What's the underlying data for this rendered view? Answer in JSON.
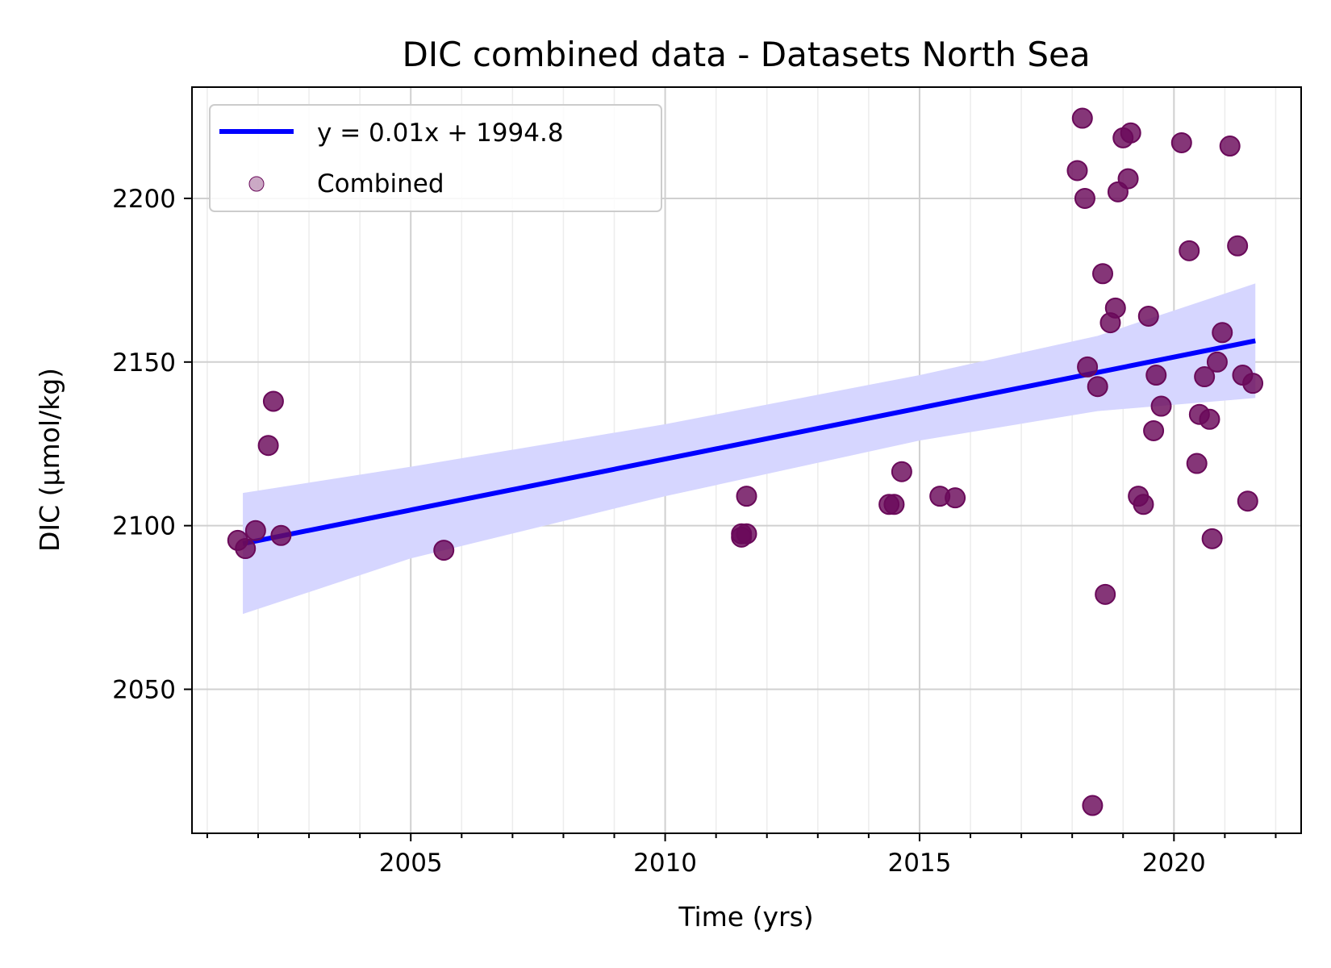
{
  "chart_data": {
    "type": "scatter",
    "title": "DIC combined data - Datasets North Sea",
    "xlabel": "Time (yrs)",
    "ylabel": "DIC (µmol/kg)",
    "xlim": [
      2000.7,
      2022.5
    ],
    "ylim": [
      2006,
      2234
    ],
    "x_ticks": [
      2005,
      2010,
      2015,
      2020
    ],
    "y_ticks": [
      2050,
      2100,
      2150,
      2200
    ],
    "grid": true,
    "legend_position": "top-left",
    "colors": {
      "points": "#6a0a5a",
      "fit_line": "#0000ff",
      "ci_band": "#d6d6ff"
    },
    "fit": {
      "label": "y = 0.01x + 1994.8",
      "start": [
        2001.7,
        2094.5
      ],
      "end": [
        2021.6,
        2156.5
      ]
    },
    "ci_band": {
      "x": [
        2001.7,
        2005,
        2010,
        2015,
        2018.5,
        2021.6
      ],
      "upper": [
        2110,
        2118,
        2131,
        2146,
        2158,
        2174
      ],
      "lower": [
        2073,
        2090,
        2109,
        2126,
        2135,
        2139
      ]
    },
    "series": [
      {
        "name": "Combined",
        "points": [
          [
            2001.6,
            2095.5
          ],
          [
            2001.75,
            2093
          ],
          [
            2001.95,
            2098.5
          ],
          [
            2002.2,
            2124.5
          ],
          [
            2002.3,
            2138
          ],
          [
            2002.45,
            2097
          ],
          [
            2005.65,
            2092.5
          ],
          [
            2011.5,
            2097.5
          ],
          [
            2011.5,
            2096.5
          ],
          [
            2011.6,
            2097.5
          ],
          [
            2011.6,
            2109
          ],
          [
            2014.4,
            2106.5
          ],
          [
            2014.5,
            2106.5
          ],
          [
            2014.65,
            2116.5
          ],
          [
            2015.4,
            2109
          ],
          [
            2015.7,
            2108.5
          ],
          [
            2018.1,
            2208.5
          ],
          [
            2018.2,
            2224.5
          ],
          [
            2018.25,
            2200
          ],
          [
            2018.3,
            2148.5
          ],
          [
            2018.4,
            2014.5
          ],
          [
            2018.5,
            2142.5
          ],
          [
            2018.6,
            2177
          ],
          [
            2018.65,
            2079
          ],
          [
            2018.75,
            2162
          ],
          [
            2018.85,
            2166.5
          ],
          [
            2018.9,
            2202
          ],
          [
            2019.0,
            2218.5
          ],
          [
            2019.1,
            2206
          ],
          [
            2019.15,
            2220
          ],
          [
            2019.3,
            2109
          ],
          [
            2019.4,
            2106.5
          ],
          [
            2019.5,
            2164
          ],
          [
            2019.6,
            2129
          ],
          [
            2019.65,
            2146
          ],
          [
            2019.75,
            2136.5
          ],
          [
            2020.15,
            2217
          ],
          [
            2020.3,
            2184
          ],
          [
            2020.45,
            2119
          ],
          [
            2020.5,
            2134
          ],
          [
            2020.6,
            2145.5
          ],
          [
            2020.7,
            2132.5
          ],
          [
            2020.75,
            2096
          ],
          [
            2020.85,
            2150
          ],
          [
            2020.95,
            2159
          ],
          [
            2021.1,
            2216
          ],
          [
            2021.25,
            2185.5
          ],
          [
            2021.35,
            2146
          ],
          [
            2021.45,
            2107.5
          ],
          [
            2021.55,
            2143.5
          ]
        ]
      }
    ]
  }
}
